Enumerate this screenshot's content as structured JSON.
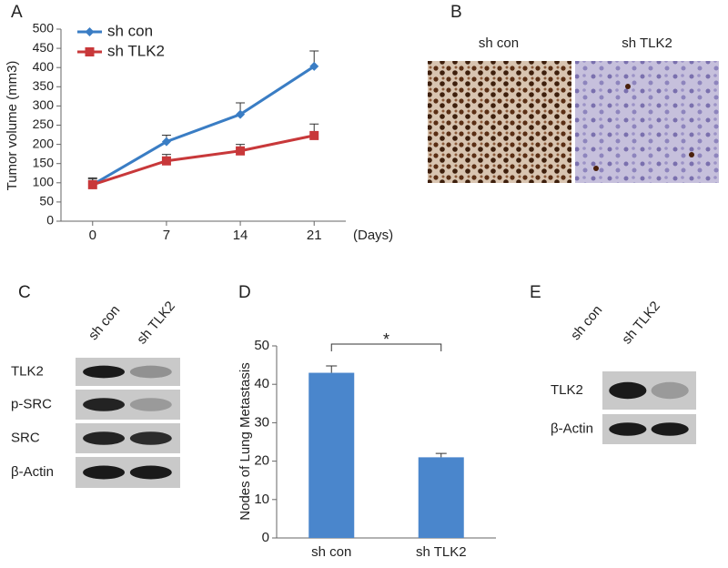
{
  "chart_data": [
    {
      "type": "line",
      "panel_label": "A",
      "y_label": "Tumor volume (mm3)",
      "x_label": "(Days)",
      "x": [
        0,
        7,
        14,
        21
      ],
      "xlim": [
        -3,
        24
      ],
      "xticks": [
        0,
        7,
        14,
        21
      ],
      "ylim": [
        0,
        500
      ],
      "yticks": [
        0,
        50,
        100,
        150,
        200,
        250,
        300,
        350,
        400,
        450,
        500
      ],
      "legend": "top-left",
      "series": [
        {
          "name": "sh con",
          "color": "#3a7dc4",
          "marker": "diamond",
          "values": [
            95,
            207,
            278,
            403
          ],
          "errors": [
            18,
            17,
            30,
            40
          ]
        },
        {
          "name": "sh TLK2",
          "color": "#c8383a",
          "marker": "square",
          "values": [
            95,
            157,
            183,
            223
          ],
          "errors": [
            15,
            17,
            17,
            30
          ]
        }
      ]
    },
    {
      "type": "bar",
      "panel_label": "D",
      "y_label": "Nodes of Lung Metastasis",
      "categories": [
        "sh con",
        "sh TLK2"
      ],
      "values": [
        43,
        21
      ],
      "errors": [
        1.8,
        1
      ],
      "color": "#4a86cc",
      "ylim": [
        0,
        50
      ],
      "yticks": [
        0,
        10,
        20,
        30,
        40,
        50
      ],
      "significance": "*"
    }
  ],
  "ihc_panel": {
    "panel_label": "B",
    "columns": [
      "sh con",
      "sh TLK2"
    ]
  },
  "blot_c": {
    "panel_label": "C",
    "lanes": [
      "sh con",
      "sh TLK2"
    ],
    "rows": [
      "TLK2",
      "p-SRC",
      "SRC",
      "β-Actin"
    ]
  },
  "blot_e": {
    "panel_label": "E",
    "lanes": [
      "sh con",
      "sh TLK2"
    ],
    "rows": [
      "TLK2",
      "β-Actin"
    ]
  }
}
